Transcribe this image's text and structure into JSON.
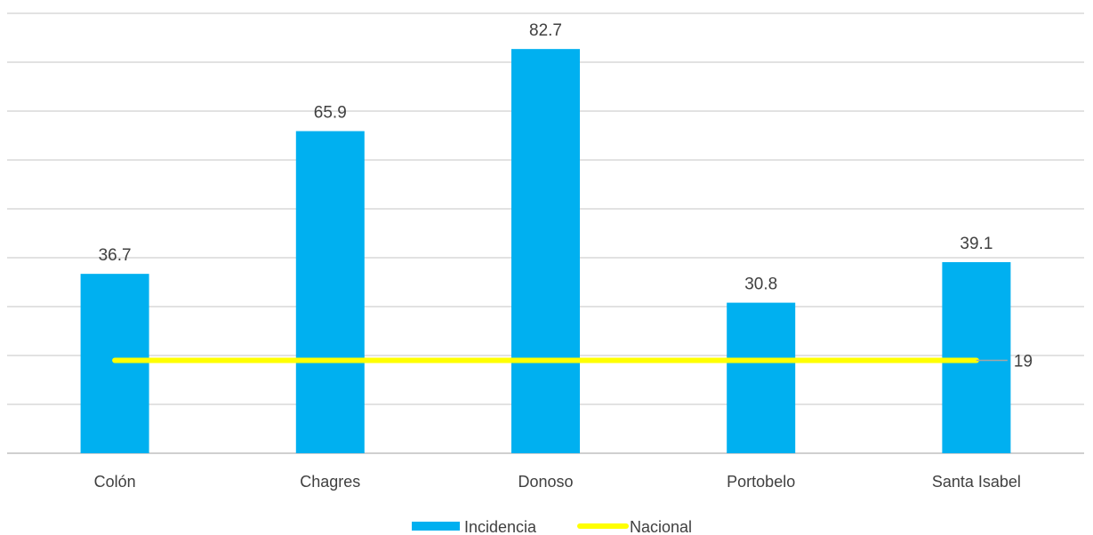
{
  "chart_data": {
    "type": "bar",
    "categories": [
      "Colón",
      "Chagres",
      "Donoso",
      "Portobelo",
      "Santa Isabel"
    ],
    "series": [
      {
        "name": "Incidencia",
        "type": "bar",
        "values": [
          36.7,
          65.9,
          82.7,
          30.8,
          39.1
        ],
        "color": "#00B0F0"
      },
      {
        "name": "Nacional",
        "type": "line",
        "value": 19,
        "color": "#FFFF00"
      }
    ],
    "ylim": [
      0,
      90
    ],
    "grid": true,
    "legend": "bottom",
    "data_labels": [
      "36.7",
      "65.9",
      "82.7",
      "30.8",
      "39.1"
    ],
    "reference_label": "19"
  }
}
